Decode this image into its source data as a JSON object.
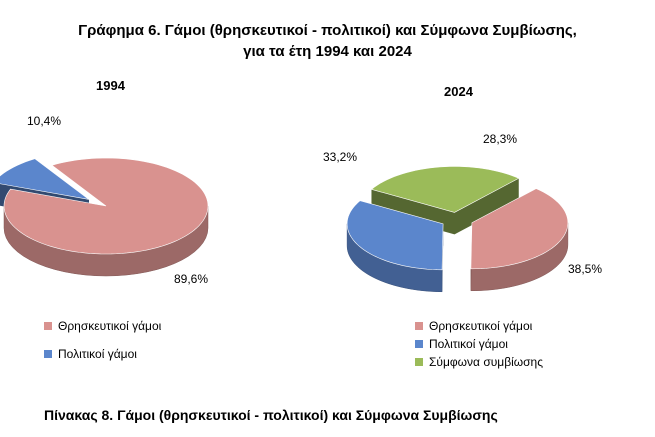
{
  "title_line1": "Γράφημα 6. Γάμοι (θρησκευτικοί - πολιτικοί) και Σύμφωνα Συμβίωσης,",
  "title_line2": "για τα έτη 1994 και 2024",
  "footer": "Πίνακας 8. Γάμοι (θρησκευτικοί - πολιτικοί) και Σύμφωνα Συμβίωσης",
  "chart_data": [
    {
      "type": "pie",
      "title": "1994",
      "slices": [
        {
          "label": "Θρησκευτικοί γάμοι",
          "value": 89.6,
          "display": "89,6%",
          "color": "#d9928f",
          "exploded": false
        },
        {
          "label": "Πολιτικοί γάμοι",
          "value": 10.4,
          "display": "10,4%",
          "color": "#5b86cc",
          "exploded": true
        }
      ],
      "legend": [
        "Θρησκευτικοί γάμοι",
        "Πολιτικοί γάμοι"
      ]
    },
    {
      "type": "pie",
      "title": "2024",
      "slices": [
        {
          "label": "Θρησκευτικοί γάμοι",
          "value": 38.5,
          "display": "38,5%",
          "color": "#d9928f",
          "exploded": true
        },
        {
          "label": "Πολιτικοί γάμοι",
          "value": 33.2,
          "display": "33,2%",
          "color": "#5b86cc",
          "exploded": true
        },
        {
          "label": "Σύμφωνα συμβίωσης",
          "value": 28.3,
          "display": "28,3%",
          "color": "#9bbb59",
          "exploded": true
        }
      ],
      "legend": [
        "Θρησκευτικοί γάμοι",
        "Πολιτικοί γάμοι",
        "Σύμφωνα συμβίωσης"
      ]
    }
  ]
}
